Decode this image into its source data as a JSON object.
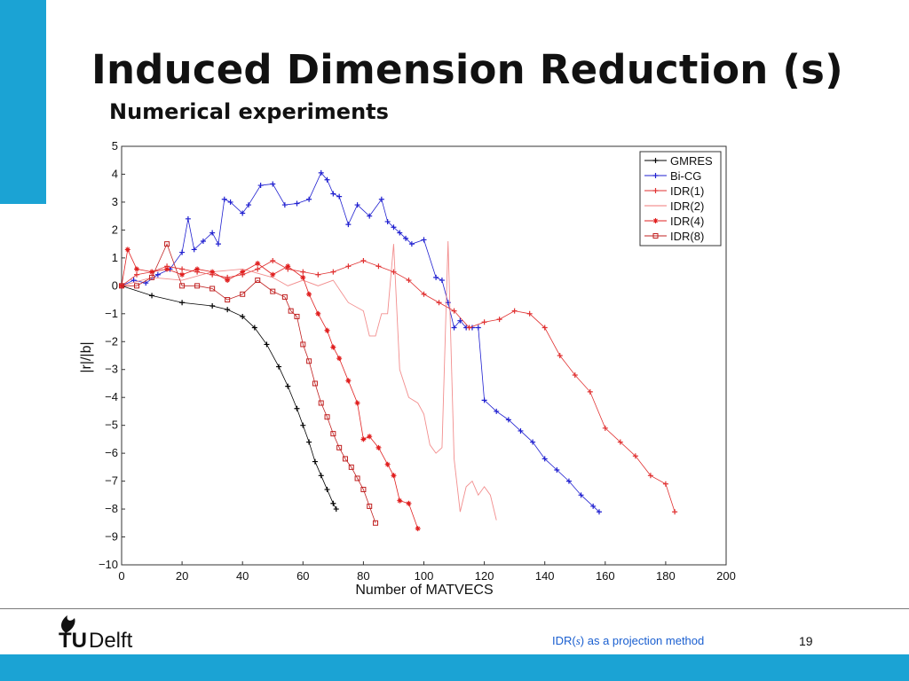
{
  "slide": {
    "title": "Induced Dimension Reduction (s)",
    "subtitle": "Numerical experiments",
    "footer_prefix": "IDR(",
    "footer_s": "s",
    "footer_suffix": ") as a projection method",
    "page_number": "19",
    "logo_tu": "TU",
    "logo_delft": "Delft",
    "accent_color": "#1ba3d4",
    "link_color": "#1a5fd0"
  },
  "chart_data": {
    "type": "line",
    "title": "",
    "xlabel": "Number of MATVECS",
    "ylabel": "|r|/|b|",
    "xlim": [
      0,
      200
    ],
    "ylim": [
      -10,
      5
    ],
    "xticks": [
      0,
      20,
      40,
      60,
      80,
      100,
      120,
      140,
      160,
      180,
      200
    ],
    "yticks": [
      5,
      4,
      3,
      2,
      1,
      0,
      -1,
      -2,
      -3,
      -4,
      -5,
      -6,
      -7,
      -8,
      -9,
      -10
    ],
    "grid": true,
    "legend_position": "top-right",
    "series": [
      {
        "name": "GMRES",
        "color": "#000000",
        "marker": "plus",
        "x": [
          0,
          10,
          20,
          30,
          35,
          40,
          44,
          48,
          52,
          55,
          58,
          60,
          62,
          64,
          66,
          68,
          70,
          71
        ],
        "y": [
          0,
          -0.35,
          -0.6,
          -0.72,
          -0.85,
          -1.1,
          -1.5,
          -2.1,
          -2.9,
          -3.6,
          -4.4,
          -5.0,
          -5.6,
          -6.3,
          -6.8,
          -7.3,
          -7.8,
          -8.0
        ]
      },
      {
        "name": "Bi-CG",
        "color": "#1f1fd0",
        "marker": "plus",
        "x": [
          0,
          4,
          8,
          12,
          16,
          20,
          22,
          24,
          27,
          30,
          32,
          34,
          36,
          40,
          42,
          46,
          50,
          54,
          58,
          62,
          66,
          68,
          70,
          72,
          75,
          78,
          82,
          86,
          88,
          90,
          92,
          94,
          96,
          100,
          104,
          106,
          108,
          110,
          112,
          114,
          116,
          118,
          120,
          124,
          128,
          132,
          136,
          140,
          144,
          148,
          152,
          156,
          158
        ],
        "y": [
          0,
          0.2,
          0.1,
          0.4,
          0.6,
          1.2,
          2.4,
          1.3,
          1.6,
          1.9,
          1.5,
          3.1,
          3.0,
          2.6,
          2.9,
          3.6,
          3.65,
          2.9,
          2.95,
          3.1,
          4.05,
          3.8,
          3.3,
          3.2,
          2.2,
          2.9,
          2.5,
          3.1,
          2.3,
          2.1,
          1.9,
          1.7,
          1.5,
          1.65,
          0.3,
          0.2,
          -0.6,
          -1.5,
          -1.25,
          -1.5,
          -1.5,
          -1.5,
          -4.1,
          -4.5,
          -4.8,
          -5.2,
          -5.6,
          -6.2,
          -6.6,
          -7.0,
          -7.5,
          -7.9,
          -8.1
        ]
      },
      {
        "name": "IDR(1)",
        "color": "#e03030",
        "marker": "plus",
        "x": [
          0,
          5,
          10,
          15,
          20,
          25,
          30,
          35,
          40,
          45,
          50,
          55,
          60,
          65,
          70,
          75,
          80,
          85,
          90,
          95,
          100,
          105,
          110,
          115,
          120,
          125,
          130,
          135,
          140,
          145,
          150,
          155,
          160,
          165,
          170,
          175,
          180,
          183
        ],
        "y": [
          0,
          0.4,
          0.5,
          0.7,
          0.6,
          0.5,
          0.4,
          0.3,
          0.4,
          0.6,
          0.9,
          0.6,
          0.5,
          0.4,
          0.5,
          0.7,
          0.9,
          0.7,
          0.5,
          0.2,
          -0.3,
          -0.6,
          -0.9,
          -1.5,
          -1.3,
          -1.2,
          -0.9,
          -1.0,
          -1.5,
          -2.5,
          -3.2,
          -3.8,
          -5.1,
          -5.6,
          -6.1,
          -6.8,
          -7.1,
          -8.1
        ]
      },
      {
        "name": "IDR(2)",
        "color": "#f07a7a",
        "marker": "none",
        "x": [
          0,
          10,
          20,
          30,
          40,
          50,
          55,
          60,
          65,
          70,
          75,
          80,
          82,
          84,
          86,
          88,
          90,
          92,
          95,
          98,
          100,
          102,
          104,
          106,
          108,
          110,
          112,
          114,
          116,
          118,
          120,
          122,
          124
        ],
        "y": [
          0,
          0.3,
          0.2,
          0.5,
          0.6,
          0.3,
          0.0,
          0.2,
          0.0,
          0.2,
          -0.6,
          -0.9,
          -1.8,
          -1.8,
          -1.0,
          -1.0,
          1.5,
          -3.0,
          -4.0,
          -4.2,
          -4.6,
          -5.7,
          -6.0,
          -5.8,
          1.6,
          -6.2,
          -8.1,
          -7.2,
          -7.0,
          -7.5,
          -7.2,
          -7.5,
          -8.4
        ]
      },
      {
        "name": "IDR(4)",
        "color": "#e01f1f",
        "marker": "star",
        "x": [
          0,
          2,
          5,
          10,
          15,
          20,
          25,
          30,
          35,
          40,
          45,
          50,
          55,
          60,
          62,
          65,
          68,
          70,
          72,
          75,
          78,
          80,
          82,
          85,
          88,
          90,
          92,
          95,
          98
        ],
        "y": [
          0,
          1.3,
          0.6,
          0.5,
          0.6,
          0.4,
          0.6,
          0.5,
          0.2,
          0.5,
          0.8,
          0.4,
          0.7,
          0.3,
          -0.3,
          -1.0,
          -1.6,
          -2.2,
          -2.6,
          -3.4,
          -4.2,
          -5.5,
          -5.4,
          -5.8,
          -6.4,
          -6.8,
          -7.7,
          -7.8,
          -8.7
        ]
      },
      {
        "name": "IDR(8)",
        "color": "#c02020",
        "marker": "square",
        "x": [
          0,
          5,
          10,
          15,
          20,
          25,
          30,
          35,
          40,
          45,
          50,
          54,
          56,
          58,
          60,
          62,
          64,
          66,
          68,
          70,
          72,
          74,
          76,
          78,
          80,
          82,
          84
        ],
        "y": [
          0,
          0.0,
          0.3,
          1.5,
          0.0,
          0.0,
          -0.1,
          -0.5,
          -0.3,
          0.2,
          -0.2,
          -0.4,
          -0.9,
          -1.1,
          -2.1,
          -2.7,
          -3.5,
          -4.2,
          -4.7,
          -5.3,
          -5.8,
          -6.2,
          -6.5,
          -6.9,
          -7.3,
          -7.9,
          -8.5
        ]
      }
    ]
  }
}
